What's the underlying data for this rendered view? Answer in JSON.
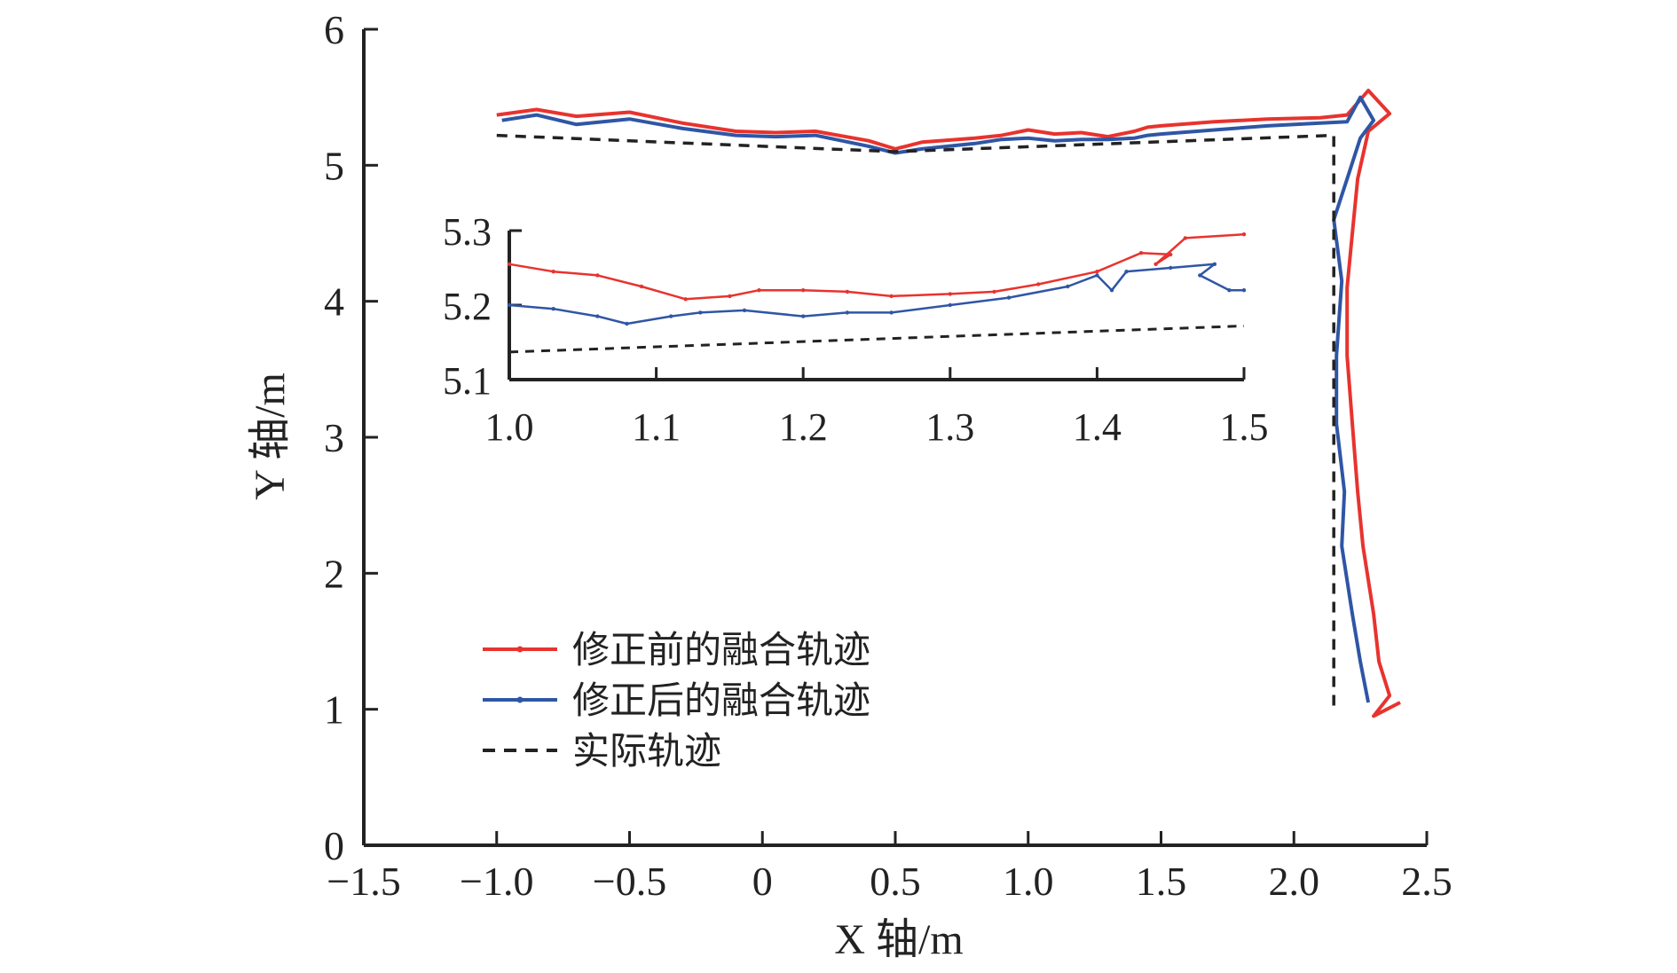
{
  "chart_data": {
    "type": "line",
    "xlabel": "X 轴/m",
    "ylabel": "Y 轴/m",
    "xlim": [
      -1.5,
      2.5
    ],
    "ylim": [
      0,
      6
    ],
    "x_ticks": [
      "−1.5",
      "−1.0",
      "−0.5",
      "0",
      "0.5",
      "1.0",
      "1.5",
      "2.0",
      "2.5"
    ],
    "y_ticks": [
      "0",
      "1",
      "2",
      "3",
      "4",
      "5",
      "6"
    ],
    "grid": false,
    "legend_position": "lower-left",
    "colors": {
      "before": "#e8332e",
      "after": "#2f56a5",
      "actual": "#222222"
    },
    "series": [
      {
        "name": "修正前的融合轨迹",
        "style": "solid-dotted",
        "color": "#e8332e",
        "points": [
          [
            -1.0,
            5.37
          ],
          [
            -0.85,
            5.41
          ],
          [
            -0.7,
            5.36
          ],
          [
            -0.5,
            5.39
          ],
          [
            -0.3,
            5.31
          ],
          [
            -0.1,
            5.25
          ],
          [
            0.05,
            5.24
          ],
          [
            0.2,
            5.25
          ],
          [
            0.4,
            5.18
          ],
          [
            0.5,
            5.12
          ],
          [
            0.6,
            5.17
          ],
          [
            0.8,
            5.2
          ],
          [
            0.9,
            5.22
          ],
          [
            1.0,
            5.26
          ],
          [
            1.1,
            5.23
          ],
          [
            1.2,
            5.24
          ],
          [
            1.3,
            5.21
          ],
          [
            1.4,
            5.25
          ],
          [
            1.45,
            5.28
          ],
          [
            1.5,
            5.29
          ],
          [
            1.7,
            5.32
          ],
          [
            1.9,
            5.34
          ],
          [
            2.1,
            5.35
          ],
          [
            2.2,
            5.37
          ],
          [
            2.28,
            5.55
          ],
          [
            2.36,
            5.38
          ],
          [
            2.28,
            5.25
          ],
          [
            2.24,
            4.9
          ],
          [
            2.22,
            4.5
          ],
          [
            2.2,
            4.1
          ],
          [
            2.2,
            3.6
          ],
          [
            2.22,
            3.1
          ],
          [
            2.24,
            2.6
          ],
          [
            2.26,
            2.2
          ],
          [
            2.3,
            1.7
          ],
          [
            2.32,
            1.35
          ],
          [
            2.36,
            1.1
          ],
          [
            2.3,
            0.95
          ],
          [
            2.4,
            1.05
          ]
        ]
      },
      {
        "name": "修正后的融合轨迹",
        "style": "solid-dotted",
        "color": "#2f56a5",
        "points": [
          [
            -0.98,
            5.33
          ],
          [
            -0.85,
            5.37
          ],
          [
            -0.7,
            5.3
          ],
          [
            -0.5,
            5.34
          ],
          [
            -0.3,
            5.27
          ],
          [
            -0.1,
            5.22
          ],
          [
            0.05,
            5.21
          ],
          [
            0.2,
            5.22
          ],
          [
            0.4,
            5.14
          ],
          [
            0.5,
            5.09
          ],
          [
            0.6,
            5.12
          ],
          [
            0.8,
            5.16
          ],
          [
            0.9,
            5.19
          ],
          [
            1.0,
            5.2
          ],
          [
            1.1,
            5.18
          ],
          [
            1.2,
            5.19
          ],
          [
            1.3,
            5.19
          ],
          [
            1.4,
            5.2
          ],
          [
            1.45,
            5.22
          ],
          [
            1.5,
            5.23
          ],
          [
            1.7,
            5.26
          ],
          [
            1.9,
            5.29
          ],
          [
            2.1,
            5.31
          ],
          [
            2.2,
            5.32
          ],
          [
            2.25,
            5.5
          ],
          [
            2.3,
            5.33
          ],
          [
            2.25,
            5.2
          ],
          [
            2.2,
            4.9
          ],
          [
            2.15,
            4.6
          ],
          [
            2.18,
            4.15
          ],
          [
            2.16,
            3.6
          ],
          [
            2.16,
            3.1
          ],
          [
            2.19,
            2.6
          ],
          [
            2.18,
            2.2
          ],
          [
            2.22,
            1.7
          ],
          [
            2.25,
            1.35
          ],
          [
            2.27,
            1.15
          ],
          [
            2.28,
            1.05
          ]
        ]
      },
      {
        "name": "实际轨迹",
        "style": "dashed",
        "color": "#222222",
        "points": [
          [
            -1.0,
            5.22
          ],
          [
            0.5,
            5.1
          ],
          [
            2.15,
            5.22
          ],
          [
            2.15,
            1.0
          ]
        ]
      }
    ],
    "inset": {
      "xlim": [
        1.0,
        1.5
      ],
      "ylim": [
        5.1,
        5.3
      ],
      "x_ticks": [
        "1.0",
        "1.1",
        "1.2",
        "1.3",
        "1.4",
        "1.5"
      ],
      "y_ticks": [
        "5.1",
        "5.2",
        "5.3"
      ],
      "series": [
        {
          "name": "修正前的融合轨迹",
          "points": [
            [
              1.0,
              5.255
            ],
            [
              1.03,
              5.245
            ],
            [
              1.06,
              5.24
            ],
            [
              1.09,
              5.225
            ],
            [
              1.12,
              5.208
            ],
            [
              1.15,
              5.212
            ],
            [
              1.17,
              5.22
            ],
            [
              1.2,
              5.22
            ],
            [
              1.23,
              5.218
            ],
            [
              1.26,
              5.212
            ],
            [
              1.3,
              5.215
            ],
            [
              1.33,
              5.218
            ],
            [
              1.36,
              5.228
            ],
            [
              1.4,
              5.245
            ],
            [
              1.43,
              5.27
            ],
            [
              1.45,
              5.268
            ],
            [
              1.44,
              5.255
            ],
            [
              1.46,
              5.29
            ],
            [
              1.5,
              5.295
            ]
          ]
        },
        {
          "name": "修正后的融合轨迹",
          "points": [
            [
              1.0,
              5.2
            ],
            [
              1.03,
              5.195
            ],
            [
              1.06,
              5.185
            ],
            [
              1.08,
              5.175
            ],
            [
              1.11,
              5.185
            ],
            [
              1.13,
              5.19
            ],
            [
              1.16,
              5.193
            ],
            [
              1.2,
              5.185
            ],
            [
              1.23,
              5.19
            ],
            [
              1.26,
              5.19
            ],
            [
              1.3,
              5.2
            ],
            [
              1.34,
              5.21
            ],
            [
              1.38,
              5.225
            ],
            [
              1.4,
              5.24
            ],
            [
              1.41,
              5.22
            ],
            [
              1.42,
              5.245
            ],
            [
              1.45,
              5.25
            ],
            [
              1.48,
              5.255
            ],
            [
              1.47,
              5.24
            ],
            [
              1.49,
              5.22
            ],
            [
              1.5,
              5.22
            ]
          ]
        },
        {
          "name": "实际轨迹",
          "points": [
            [
              1.0,
              5.137
            ],
            [
              1.5,
              5.172
            ]
          ]
        }
      ]
    }
  }
}
